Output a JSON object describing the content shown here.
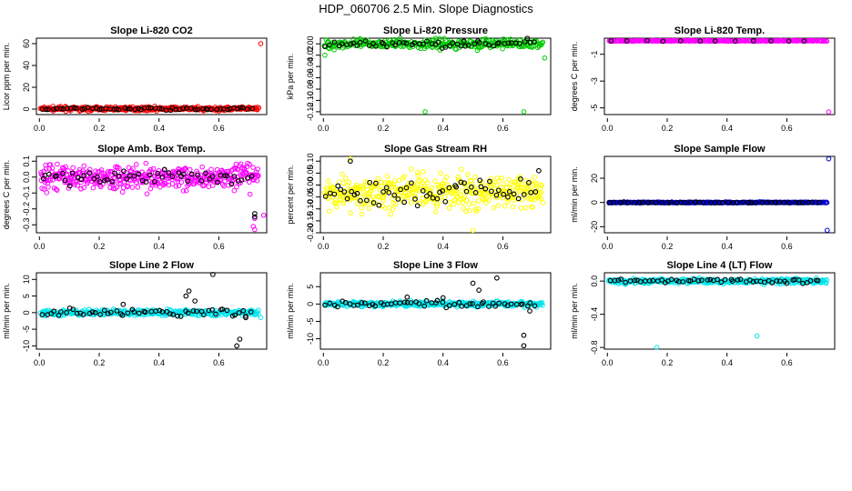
{
  "page_title": "HDP_060706  2.5 Min. Slope Diagnostics",
  "chart_data": [
    {
      "type": "scatter",
      "title": "Slope Li-820 CO2",
      "ylabel": "Licor ppm per min.",
      "color": "#ff0000",
      "xlim": [
        -0.01,
        0.76
      ],
      "ylim": [
        -5,
        65
      ],
      "xticks": [
        0.0,
        0.2,
        0.4,
        0.6
      ],
      "xtick_labels": [
        "0.0",
        "0.2",
        "0.4",
        "0.6"
      ],
      "yticks": [
        0,
        20,
        40,
        60
      ],
      "ytick_labels": [
        "0",
        "20",
        "40",
        "60"
      ],
      "pattern": {
        "center": 0.3,
        "spread": 1.2,
        "n": 360,
        "black_n": 60,
        "black_spread": 0.8
      },
      "outliers": [
        [
          0.74,
          60
        ]
      ],
      "black_outliers": []
    },
    {
      "type": "scatter",
      "title": "Slope Li-820 Pressure",
      "ylabel": "kPa per min.",
      "color": "#00cc00",
      "xlim": [
        -0.01,
        0.76
      ],
      "ylim": [
        -0.125,
        0.01
      ],
      "xticks": [
        0.0,
        0.2,
        0.4,
        0.6
      ],
      "xtick_labels": [
        "0.0",
        "0.2",
        "0.4",
        "0.6"
      ],
      "yticks": [
        -0.12,
        -0.1,
        -0.08,
        -0.06,
        -0.04,
        -0.02,
        0.0
      ],
      "ytick_labels": [
        "-0.12",
        "-0.10",
        "-0.08",
        "-0.06",
        "-0.04",
        "-0.02",
        "0.00"
      ],
      "pattern": {
        "center": 0.0,
        "spread": 0.006,
        "n": 320,
        "black_n": 55,
        "black_spread": 0.005
      },
      "outliers": [
        [
          0.34,
          -0.12
        ],
        [
          0.67,
          -0.12
        ],
        [
          0.74,
          -0.025
        ],
        [
          0.005,
          -0.02
        ]
      ],
      "black_outliers": [
        [
          0.47,
          0.005
        ]
      ]
    },
    {
      "type": "scatter",
      "title": "Slope Li-820 Temp.",
      "ylabel": "degrees C per min.",
      "color": "#ff00ff",
      "xlim": [
        -0.01,
        0.76
      ],
      "ylim": [
        -5.5,
        0.2
      ],
      "xticks": [
        0.0,
        0.2,
        0.4,
        0.6
      ],
      "xtick_labels": [
        "0.0",
        "0.2",
        "0.4",
        "0.6"
      ],
      "yticks": [
        -5,
        -3,
        -1
      ],
      "ytick_labels": [
        "-5",
        "-3",
        "-1"
      ],
      "pattern": {
        "center": 0.0,
        "spread": 0.02,
        "n": 300,
        "black_n": 12,
        "black_spread": 0.02
      },
      "outliers": [
        [
          0.74,
          -5.3
        ]
      ],
      "black_outliers": []
    },
    {
      "type": "scatter",
      "title": "Slope Amb. Box Temp.",
      "ylabel": "degrees C per min.",
      "color": "#ff00ff",
      "xlim": [
        -0.01,
        0.76
      ],
      "ylim": [
        -0.35,
        0.13
      ],
      "xticks": [
        0.0,
        0.2,
        0.4,
        0.6
      ],
      "xtick_labels": [
        "0.0",
        "0.2",
        "0.4",
        "0.6"
      ],
      "yticks": [
        -0.3,
        -0.2,
        -0.1,
        0.0,
        0.1
      ],
      "ytick_labels": [
        "-0.3",
        "-0.2",
        "-0.1",
        "0.0",
        "0.1"
      ],
      "pattern": {
        "center": 0.0,
        "spread": 0.055,
        "n": 420,
        "black_n": 55,
        "black_spread": 0.03
      },
      "outliers": [
        [
          0.72,
          -0.33
        ],
        [
          0.715,
          -0.31
        ],
        [
          0.72,
          -0.26
        ],
        [
          0.75,
          -0.24
        ]
      ],
      "black_outliers": [
        [
          0.72,
          -0.23
        ],
        [
          0.72,
          -0.25
        ]
      ]
    },
    {
      "type": "scatter",
      "title": "Slope Gas Stream RH",
      "ylabel": "percent per min.",
      "color": "#ffff00",
      "xlim": [
        -0.01,
        0.76
      ],
      "ylim": [
        -0.2,
        0.12
      ],
      "xticks": [
        0.0,
        0.2,
        0.4,
        0.6
      ],
      "xtick_labels": [
        "0.0",
        "0.2",
        "0.4",
        "0.6"
      ],
      "yticks": [
        -0.2,
        -0.15,
        -0.1,
        -0.05,
        0.0,
        0.05,
        0.1
      ],
      "ytick_labels": [
        "-0.20",
        "-0.15",
        "-0.10",
        "-0.05",
        "0.00",
        "0.05",
        "0.10"
      ],
      "pattern": {
        "center": -0.03,
        "spread": 0.05,
        "n": 420,
        "black_n": 60,
        "black_spread": 0.04
      },
      "outliers": [
        [
          0.5,
          -0.19
        ],
        [
          0.09,
          0.11
        ]
      ],
      "black_outliers": [
        [
          0.09,
          0.1
        ],
        [
          0.72,
          0.06
        ]
      ]
    },
    {
      "type": "scatter",
      "title": "Slope Sample Flow",
      "ylabel": "ml/min per min.",
      "color": "#0000cc",
      "xlim": [
        -0.01,
        0.76
      ],
      "ylim": [
        -25,
        38
      ],
      "xticks": [
        0.0,
        0.2,
        0.4,
        0.6
      ],
      "xtick_labels": [
        "0.0",
        "0.2",
        "0.4",
        "0.6"
      ],
      "yticks": [
        -20,
        0,
        20
      ],
      "ytick_labels": [
        "-20",
        "0",
        "20"
      ],
      "pattern": {
        "center": 0.0,
        "spread": 0.3,
        "n": 360,
        "black_n": 45,
        "black_spread": 0.3
      },
      "outliers": [
        [
          0.74,
          36
        ],
        [
          0.735,
          -23
        ]
      ],
      "black_outliers": []
    },
    {
      "type": "scatter",
      "title": "Slope Line 2 Flow",
      "ylabel": "ml/min per min.",
      "color": "#00e5ee",
      "xlim": [
        -0.01,
        0.76
      ],
      "ylim": [
        -11,
        12
      ],
      "xticks": [
        0.0,
        0.2,
        0.4,
        0.6
      ],
      "xtick_labels": [
        "0.0",
        "0.2",
        "0.4",
        "0.6"
      ],
      "yticks": [
        -10,
        -5,
        0,
        5,
        10
      ],
      "ytick_labels": [
        "-10",
        "-5",
        "0",
        "5",
        "10"
      ],
      "pattern": {
        "center": 0.0,
        "spread": 0.6,
        "n": 360,
        "black_n": 55,
        "black_spread": 0.8
      },
      "outliers": [
        [
          0.74,
          -1.5
        ]
      ],
      "black_outliers": [
        [
          0.58,
          11.5
        ],
        [
          0.5,
          6.5
        ],
        [
          0.49,
          5
        ],
        [
          0.52,
          3.5
        ],
        [
          0.67,
          -8
        ],
        [
          0.66,
          -10
        ],
        [
          0.28,
          2.5
        ],
        [
          0.69,
          -1.5
        ]
      ]
    },
    {
      "type": "scatter",
      "title": "Slope Line 3 Flow",
      "ylabel": "ml/min per min.",
      "color": "#00e5ee",
      "xlim": [
        -0.01,
        0.76
      ],
      "ylim": [
        -13,
        9
      ],
      "xticks": [
        0.0,
        0.2,
        0.4,
        0.6
      ],
      "xtick_labels": [
        "0.0",
        "0.2",
        "0.4",
        "0.6"
      ],
      "yticks": [
        -10,
        -5,
        0,
        5
      ],
      "ytick_labels": [
        "-10",
        "-5",
        "0",
        "5"
      ],
      "pattern": {
        "center": 0.0,
        "spread": 0.5,
        "n": 360,
        "black_n": 55,
        "black_spread": 0.8
      },
      "outliers": [],
      "black_outliers": [
        [
          0.58,
          7.5
        ],
        [
          0.5,
          6
        ],
        [
          0.52,
          4
        ],
        [
          0.67,
          -9
        ],
        [
          0.67,
          -12
        ],
        [
          0.28,
          2
        ],
        [
          0.69,
          -2
        ],
        [
          0.4,
          1.8
        ]
      ]
    },
    {
      "type": "scatter",
      "title": "Slope Line 4 (LT) Flow",
      "ylabel": "ml/min per min.",
      "color": "#00e5ee",
      "xlim": [
        -0.01,
        0.76
      ],
      "ylim": [
        -0.82,
        0.1
      ],
      "xticks": [
        0.0,
        0.2,
        0.4,
        0.6
      ],
      "xtick_labels": [
        "0.0",
        "0.2",
        "0.4",
        "0.6"
      ],
      "yticks": [
        -0.8,
        -0.4,
        0.0
      ],
      "ytick_labels": [
        "-0.8",
        "-0.4",
        "0.0"
      ],
      "pattern": {
        "center": 0.0,
        "spread": 0.02,
        "n": 360,
        "black_n": 55,
        "black_spread": 0.02
      },
      "outliers": [
        [
          0.165,
          -0.8
        ],
        [
          0.5,
          -0.66
        ]
      ],
      "black_outliers": []
    }
  ]
}
